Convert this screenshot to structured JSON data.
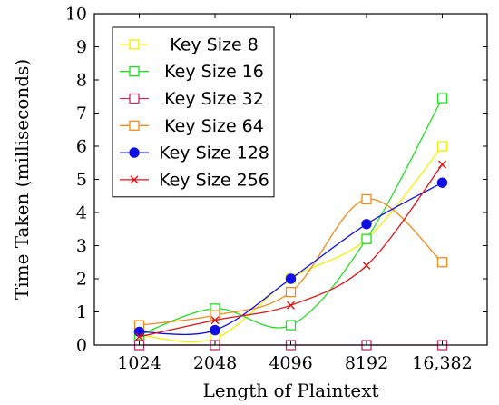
{
  "chart_data": {
    "type": "line",
    "title": "",
    "xlabel": "Length of Plaintext",
    "ylabel": "Time Taken (milliseconds)",
    "categories": [
      "1024",
      "2048",
      "4096",
      "8192",
      "16,382"
    ],
    "ylim": [
      0,
      10
    ],
    "yticks": [
      "0",
      "1",
      "2",
      "3",
      "4",
      "5",
      "6",
      "7",
      "8",
      "9",
      "10"
    ],
    "grid": false,
    "legend_position": "top-left",
    "series": [
      {
        "name": "Key Size 8",
        "color": "#f2ee00",
        "marker": "square",
        "values": [
          0.3,
          0.2,
          2.0,
          3.2,
          6.0
        ]
      },
      {
        "name": "Key Size 16",
        "color": "#22dd22",
        "marker": "square",
        "values": [
          0.3,
          1.1,
          0.6,
          3.2,
          7.45
        ]
      },
      {
        "name": "Key Size 32",
        "color": "#c0306a",
        "marker": "square",
        "values": [
          0.0,
          0.0,
          0.0,
          0.0,
          0.0
        ]
      },
      {
        "name": "Key Size 64",
        "color": "#f08a1e",
        "marker": "square",
        "values": [
          0.6,
          0.9,
          1.6,
          4.4,
          2.5
        ]
      },
      {
        "name": "Key Size 128",
        "color": "#1010e6",
        "marker": "circle",
        "values": [
          0.4,
          0.45,
          2.0,
          3.65,
          4.9
        ]
      },
      {
        "name": "Key Size 256",
        "color": "#e01414",
        "marker": "cross",
        "values": [
          0.25,
          0.75,
          1.2,
          2.4,
          5.45
        ]
      }
    ]
  }
}
